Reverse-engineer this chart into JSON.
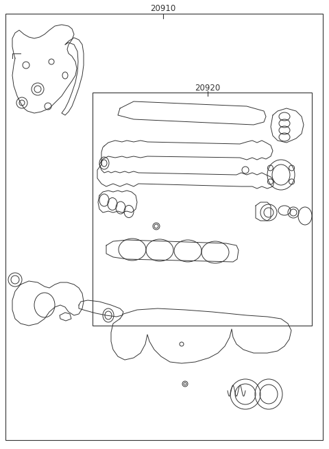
{
  "background_color": "#ffffff",
  "line_color": "#333333",
  "label_color": "#333333",
  "label_20910": "20910",
  "label_20920": "20920",
  "label_fontsize": 8.5,
  "fig_width": 4.8,
  "fig_height": 6.55,
  "dpi": 100
}
